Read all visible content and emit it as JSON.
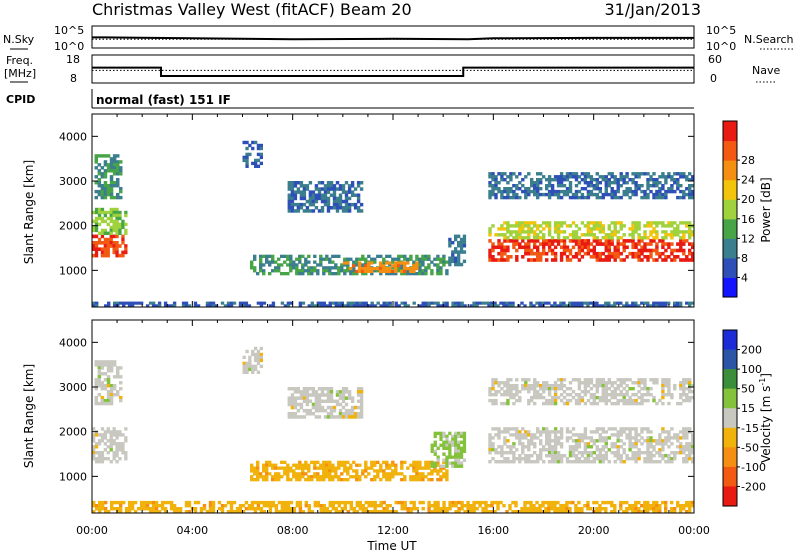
{
  "header": {
    "station": "Christmas Valley West (fitACF)",
    "beam": "Beam 20",
    "date": "31/Jan/2013"
  },
  "left_labels": {
    "nsky": "N.Sky",
    "nsky_ticks": [
      "10^5",
      "10^0"
    ],
    "freq_line1": "Freq.",
    "freq_line2": "[MHz]",
    "freq_ticks": [
      "18",
      "8"
    ],
    "cpid": "CPID"
  },
  "right_labels": {
    "nsearch": "N.Search",
    "nsearch_ticks": [
      "10^5",
      "10^0"
    ],
    "nave": "Nave",
    "nave_ticks": [
      "60",
      "0"
    ]
  },
  "cpid_text": "normal (fast) 151 IF",
  "x_axis": {
    "label": "Time UT",
    "ticks": [
      "00:00",
      "04:00",
      "08:00",
      "12:00",
      "16:00",
      "20:00",
      "00:00"
    ]
  },
  "y_axis": {
    "label": "Slant Range [km]",
    "ticks": [
      "1000",
      "2000",
      "3000",
      "4000"
    ]
  },
  "colorbars": {
    "power": {
      "label": "Power [dB]",
      "ticks": [
        "4",
        "8",
        "12",
        "16",
        "20",
        "24",
        "28"
      ],
      "colors": [
        "#1414ff",
        "#2e4fb8",
        "#3b7f8f",
        "#47a447",
        "#9fd23c",
        "#f2c40c",
        "#f58f12",
        "#f25a14",
        "#e81a12"
      ]
    },
    "velocity": {
      "label": "Velocity [m s^-1]",
      "ticks": [
        "200",
        "100",
        "50",
        "15",
        "-15",
        "-50",
        "-100",
        "-200"
      ],
      "colors": [
        "#1c2dd8",
        "#2b56a8",
        "#3b8f3b",
        "#84c23c",
        "#c8c8c0",
        "#f2b20c",
        "#f58f12",
        "#f25a14",
        "#e81a12"
      ]
    }
  },
  "chart_data": [
    {
      "type": "line",
      "title": "N.Sky / N.Search",
      "x_range_hours": [
        0,
        24
      ],
      "ylim_log10": [
        0,
        5
      ],
      "series": [
        {
          "name": "N.Sky",
          "x": [
            0,
            0.5,
            4,
            8,
            12,
            15,
            16,
            20,
            24
          ],
          "y_log10": [
            2.4,
            2.4,
            2.2,
            2.0,
            2.1,
            2.0,
            2.2,
            2.3,
            2.3
          ]
        },
        {
          "name": "N.Search",
          "x": [
            0,
            24
          ],
          "y_log10": [
            2.0,
            2.0
          ]
        }
      ]
    },
    {
      "type": "line",
      "title": "Freq / Nave",
      "x_range_hours": [
        0,
        24
      ],
      "ylim": [
        8,
        18
      ],
      "series": [
        {
          "name": "Freq. [MHz]",
          "x": [
            0,
            2.75,
            2.75,
            14.8,
            14.8,
            24
          ],
          "y": [
            13.5,
            13.5,
            10.5,
            10.5,
            13.5,
            13.5
          ]
        },
        {
          "name": "Nave",
          "x": [
            0,
            24
          ],
          "y": [
            12.5,
            12.5
          ]
        }
      ]
    },
    {
      "type": "heatmap",
      "title": "Power [dB]",
      "x_range_hours": [
        0,
        24
      ],
      "ylim_km": [
        180,
        4500
      ],
      "value_range": [
        0,
        30
      ],
      "regions": [
        {
          "t": [
            0.0,
            1.4
          ],
          "range_km": [
            1300,
            1800
          ],
          "value": 26
        },
        {
          "t": [
            0.0,
            1.4
          ],
          "range_km": [
            1800,
            2400
          ],
          "value": 14
        },
        {
          "t": [
            0.1,
            1.2
          ],
          "range_km": [
            2600,
            3600
          ],
          "value": 10
        },
        {
          "t": [
            6.0,
            6.8
          ],
          "range_km": [
            3300,
            3900
          ],
          "value": 6
        },
        {
          "t": [
            7.8,
            10.8
          ],
          "range_km": [
            2300,
            3000
          ],
          "value": 7
        },
        {
          "t": [
            6.3,
            14.2
          ],
          "range_km": [
            900,
            1350
          ],
          "value": 10
        },
        {
          "t": [
            10.0,
            13.0
          ],
          "range_km": [
            950,
            1200
          ],
          "value": 22
        },
        {
          "t": [
            14.2,
            14.9
          ],
          "range_km": [
            1100,
            1800
          ],
          "value": 8
        },
        {
          "t": [
            15.8,
            24.0
          ],
          "range_km": [
            1200,
            1700
          ],
          "value": 27
        },
        {
          "t": [
            15.8,
            24.0
          ],
          "range_km": [
            1700,
            2100
          ],
          "value": 16
        },
        {
          "t": [
            15.8,
            24.0
          ],
          "range_km": [
            2600,
            3200
          ],
          "value": 7
        },
        {
          "t": [
            0.0,
            24.0
          ],
          "range_km": [
            180,
            300
          ],
          "value": 6
        }
      ]
    },
    {
      "type": "heatmap",
      "title": "Velocity [m s^-1]",
      "x_range_hours": [
        0,
        24
      ],
      "ylim_km": [
        180,
        4500
      ],
      "value_range": [
        -250,
        250
      ],
      "regions": [
        {
          "t": [
            0.0,
            1.4
          ],
          "range_km": [
            1300,
            2100
          ],
          "value": 0
        },
        {
          "t": [
            0.1,
            1.2
          ],
          "range_km": [
            2600,
            3600
          ],
          "value": 0
        },
        {
          "t": [
            6.0,
            6.8
          ],
          "range_km": [
            3300,
            3900
          ],
          "value": 0
        },
        {
          "t": [
            7.8,
            10.8
          ],
          "range_km": [
            2300,
            3000
          ],
          "value": 0
        },
        {
          "t": [
            6.3,
            14.2
          ],
          "range_km": [
            900,
            1350
          ],
          "value": -60
        },
        {
          "t": [
            13.5,
            14.9
          ],
          "range_km": [
            1200,
            2000
          ],
          "value": 40
        },
        {
          "t": [
            15.8,
            24.0
          ],
          "range_km": [
            1300,
            2100
          ],
          "value": 0
        },
        {
          "t": [
            15.8,
            24.0
          ],
          "range_km": [
            2600,
            3200
          ],
          "value": 0
        },
        {
          "t": [
            0.0,
            24.0
          ],
          "range_km": [
            180,
            450
          ],
          "value": -60
        }
      ]
    }
  ]
}
